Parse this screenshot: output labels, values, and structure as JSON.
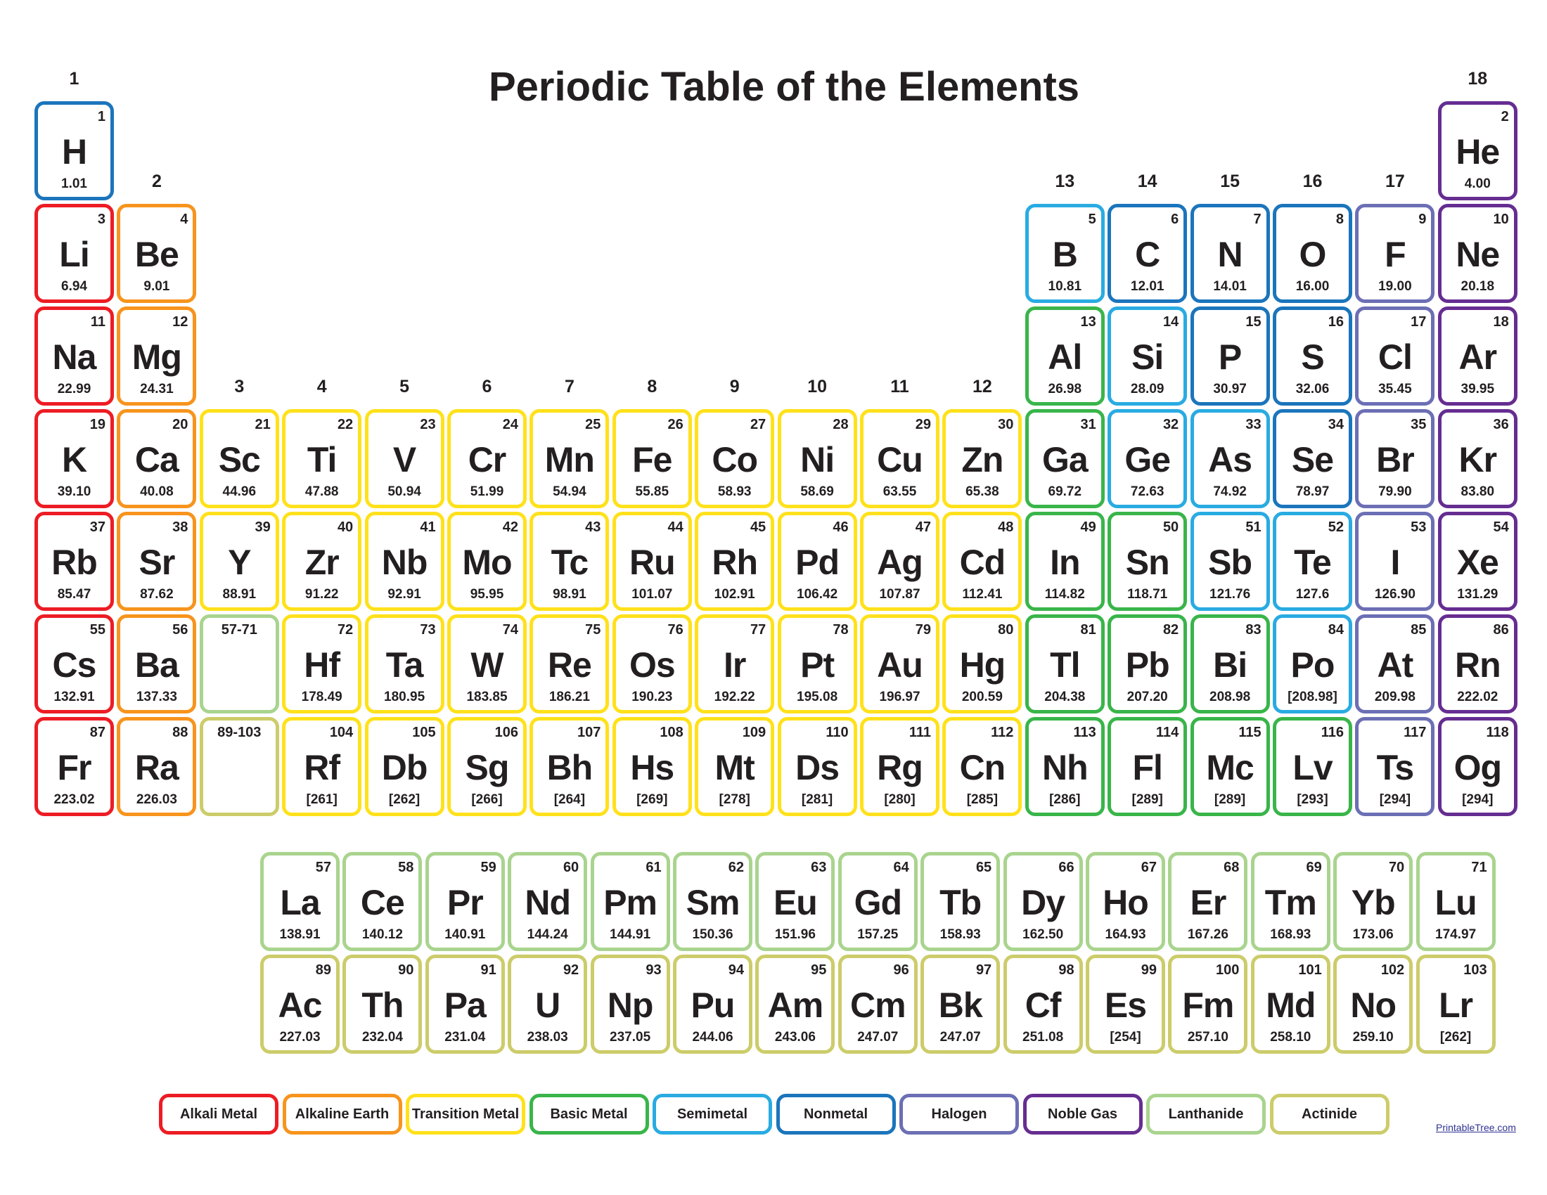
{
  "title": "Periodic Table of the Elements",
  "site": "PrintableTree.com",
  "colors": {
    "alkali": "#ed1c24",
    "alkaline": "#f7941d",
    "transition": "#ffe11b",
    "basic": "#39b54a",
    "semimetal": "#29abe2",
    "nonmetal": "#1b75bc",
    "halogen": "#6c6fb4",
    "noble": "#662d91",
    "lanthanide": "#a9d48e",
    "actinide": "#cccc6a"
  },
  "legend": [
    {
      "label": "Alkali Metal",
      "cat": "alkali"
    },
    {
      "label": "Alkaline Earth",
      "cat": "alkaline"
    },
    {
      "label": "Transition Metal",
      "cat": "transition"
    },
    {
      "label": "Basic Metal",
      "cat": "basic"
    },
    {
      "label": "Semimetal",
      "cat": "semimetal"
    },
    {
      "label": "Nonmetal",
      "cat": "nonmetal"
    },
    {
      "label": "Halogen",
      "cat": "halogen"
    },
    {
      "label": "Noble Gas",
      "cat": "noble"
    },
    {
      "label": "Lanthanide",
      "cat": "lanthanide"
    },
    {
      "label": "Actinide",
      "cat": "actinide"
    }
  ],
  "groups": [
    "1",
    "2",
    "3",
    "4",
    "5",
    "6",
    "7",
    "8",
    "9",
    "10",
    "11",
    "12",
    "13",
    "14",
    "15",
    "16",
    "17",
    "18"
  ],
  "placeholders": [
    {
      "label": "57-71",
      "cat": "lanthanide",
      "period": 6,
      "group": 3
    },
    {
      "label": "89-103",
      "cat": "actinide",
      "period": 7,
      "group": 3
    }
  ],
  "elements": [
    [
      "1",
      "H",
      "1.01",
      "nonmetal",
      1,
      1
    ],
    [
      "2",
      "He",
      "4.00",
      "noble",
      1,
      18
    ],
    [
      "3",
      "Li",
      "6.94",
      "alkali",
      2,
      1
    ],
    [
      "4",
      "Be",
      "9.01",
      "alkaline",
      2,
      2
    ],
    [
      "5",
      "B",
      "10.81",
      "semimetal",
      2,
      13
    ],
    [
      "6",
      "C",
      "12.01",
      "nonmetal",
      2,
      14
    ],
    [
      "7",
      "N",
      "14.01",
      "nonmetal",
      2,
      15
    ],
    [
      "8",
      "O",
      "16.00",
      "nonmetal",
      2,
      16
    ],
    [
      "9",
      "F",
      "19.00",
      "halogen",
      2,
      17
    ],
    [
      "10",
      "Ne",
      "20.18",
      "noble",
      2,
      18
    ],
    [
      "11",
      "Na",
      "22.99",
      "alkali",
      3,
      1
    ],
    [
      "12",
      "Mg",
      "24.31",
      "alkaline",
      3,
      2
    ],
    [
      "13",
      "Al",
      "26.98",
      "basic",
      3,
      13
    ],
    [
      "14",
      "Si",
      "28.09",
      "semimetal",
      3,
      14
    ],
    [
      "15",
      "P",
      "30.97",
      "nonmetal",
      3,
      15
    ],
    [
      "16",
      "S",
      "32.06",
      "nonmetal",
      3,
      16
    ],
    [
      "17",
      "Cl",
      "35.45",
      "halogen",
      3,
      17
    ],
    [
      "18",
      "Ar",
      "39.95",
      "noble",
      3,
      18
    ],
    [
      "19",
      "K",
      "39.10",
      "alkali",
      4,
      1
    ],
    [
      "20",
      "Ca",
      "40.08",
      "alkaline",
      4,
      2
    ],
    [
      "21",
      "Sc",
      "44.96",
      "transition",
      4,
      3
    ],
    [
      "22",
      "Ti",
      "47.88",
      "transition",
      4,
      4
    ],
    [
      "23",
      "V",
      "50.94",
      "transition",
      4,
      5
    ],
    [
      "24",
      "Cr",
      "51.99",
      "transition",
      4,
      6
    ],
    [
      "25",
      "Mn",
      "54.94",
      "transition",
      4,
      7
    ],
    [
      "26",
      "Fe",
      "55.85",
      "transition",
      4,
      8
    ],
    [
      "27",
      "Co",
      "58.93",
      "transition",
      4,
      9
    ],
    [
      "28",
      "Ni",
      "58.69",
      "transition",
      4,
      10
    ],
    [
      "29",
      "Cu",
      "63.55",
      "transition",
      4,
      11
    ],
    [
      "30",
      "Zn",
      "65.38",
      "transition",
      4,
      12
    ],
    [
      "31",
      "Ga",
      "69.72",
      "basic",
      4,
      13
    ],
    [
      "32",
      "Ge",
      "72.63",
      "semimetal",
      4,
      14
    ],
    [
      "33",
      "As",
      "74.92",
      "semimetal",
      4,
      15
    ],
    [
      "34",
      "Se",
      "78.97",
      "nonmetal",
      4,
      16
    ],
    [
      "35",
      "Br",
      "79.90",
      "halogen",
      4,
      17
    ],
    [
      "36",
      "Kr",
      "83.80",
      "noble",
      4,
      18
    ],
    [
      "37",
      "Rb",
      "85.47",
      "alkali",
      5,
      1
    ],
    [
      "38",
      "Sr",
      "87.62",
      "alkaline",
      5,
      2
    ],
    [
      "39",
      "Y",
      "88.91",
      "transition",
      5,
      3
    ],
    [
      "40",
      "Zr",
      "91.22",
      "transition",
      5,
      4
    ],
    [
      "41",
      "Nb",
      "92.91",
      "transition",
      5,
      5
    ],
    [
      "42",
      "Mo",
      "95.95",
      "transition",
      5,
      6
    ],
    [
      "43",
      "Tc",
      "98.91",
      "transition",
      5,
      7
    ],
    [
      "44",
      "Ru",
      "101.07",
      "transition",
      5,
      8
    ],
    [
      "45",
      "Rh",
      "102.91",
      "transition",
      5,
      9
    ],
    [
      "46",
      "Pd",
      "106.42",
      "transition",
      5,
      10
    ],
    [
      "47",
      "Ag",
      "107.87",
      "transition",
      5,
      11
    ],
    [
      "48",
      "Cd",
      "112.41",
      "transition",
      5,
      12
    ],
    [
      "49",
      "In",
      "114.82",
      "basic",
      5,
      13
    ],
    [
      "50",
      "Sn",
      "118.71",
      "basic",
      5,
      14
    ],
    [
      "51",
      "Sb",
      "121.76",
      "semimetal",
      5,
      15
    ],
    [
      "52",
      "Te",
      "127.6",
      "semimetal",
      5,
      16
    ],
    [
      "53",
      "I",
      "126.90",
      "halogen",
      5,
      17
    ],
    [
      "54",
      "Xe",
      "131.29",
      "noble",
      5,
      18
    ],
    [
      "55",
      "Cs",
      "132.91",
      "alkali",
      6,
      1
    ],
    [
      "56",
      "Ba",
      "137.33",
      "alkaline",
      6,
      2
    ],
    [
      "72",
      "Hf",
      "178.49",
      "transition",
      6,
      4
    ],
    [
      "73",
      "Ta",
      "180.95",
      "transition",
      6,
      5
    ],
    [
      "74",
      "W",
      "183.85",
      "transition",
      6,
      6
    ],
    [
      "75",
      "Re",
      "186.21",
      "transition",
      6,
      7
    ],
    [
      "76",
      "Os",
      "190.23",
      "transition",
      6,
      8
    ],
    [
      "77",
      "Ir",
      "192.22",
      "transition",
      6,
      9
    ],
    [
      "78",
      "Pt",
      "195.08",
      "transition",
      6,
      10
    ],
    [
      "79",
      "Au",
      "196.97",
      "transition",
      6,
      11
    ],
    [
      "80",
      "Hg",
      "200.59",
      "transition",
      6,
      12
    ],
    [
      "81",
      "Tl",
      "204.38",
      "basic",
      6,
      13
    ],
    [
      "82",
      "Pb",
      "207.20",
      "basic",
      6,
      14
    ],
    [
      "83",
      "Bi",
      "208.98",
      "basic",
      6,
      15
    ],
    [
      "84",
      "Po",
      "[208.98]",
      "semimetal",
      6,
      16
    ],
    [
      "85",
      "At",
      "209.98",
      "halogen",
      6,
      17
    ],
    [
      "86",
      "Rn",
      "222.02",
      "noble",
      6,
      18
    ],
    [
      "87",
      "Fr",
      "223.02",
      "alkali",
      7,
      1
    ],
    [
      "88",
      "Ra",
      "226.03",
      "alkaline",
      7,
      2
    ],
    [
      "104",
      "Rf",
      "[261]",
      "transition",
      7,
      4
    ],
    [
      "105",
      "Db",
      "[262]",
      "transition",
      7,
      5
    ],
    [
      "106",
      "Sg",
      "[266]",
      "transition",
      7,
      6
    ],
    [
      "107",
      "Bh",
      "[264]",
      "transition",
      7,
      7
    ],
    [
      "108",
      "Hs",
      "[269]",
      "transition",
      7,
      8
    ],
    [
      "109",
      "Mt",
      "[278]",
      "transition",
      7,
      9
    ],
    [
      "110",
      "Ds",
      "[281]",
      "transition",
      7,
      10
    ],
    [
      "111",
      "Rg",
      "[280]",
      "transition",
      7,
      11
    ],
    [
      "112",
      "Cn",
      "[285]",
      "transition",
      7,
      12
    ],
    [
      "113",
      "Nh",
      "[286]",
      "basic",
      7,
      13
    ],
    [
      "114",
      "Fl",
      "[289]",
      "basic",
      7,
      14
    ],
    [
      "115",
      "Mc",
      "[289]",
      "basic",
      7,
      15
    ],
    [
      "116",
      "Lv",
      "[293]",
      "basic",
      7,
      16
    ],
    [
      "117",
      "Ts",
      "[294]",
      "halogen",
      7,
      17
    ],
    [
      "118",
      "Og",
      "[294]",
      "noble",
      7,
      18
    ]
  ],
  "lanthanides": [
    [
      "57",
      "La",
      "138.91"
    ],
    [
      "58",
      "Ce",
      "140.12"
    ],
    [
      "59",
      "Pr",
      "140.91"
    ],
    [
      "60",
      "Nd",
      "144.24"
    ],
    [
      "61",
      "Pm",
      "144.91"
    ],
    [
      "62",
      "Sm",
      "150.36"
    ],
    [
      "63",
      "Eu",
      "151.96"
    ],
    [
      "64",
      "Gd",
      "157.25"
    ],
    [
      "65",
      "Tb",
      "158.93"
    ],
    [
      "66",
      "Dy",
      "162.50"
    ],
    [
      "67",
      "Ho",
      "164.93"
    ],
    [
      "68",
      "Er",
      "167.26"
    ],
    [
      "69",
      "Tm",
      "168.93"
    ],
    [
      "70",
      "Yb",
      "173.06"
    ],
    [
      "71",
      "Lu",
      "174.97"
    ]
  ],
  "actinides": [
    [
      "89",
      "Ac",
      "227.03"
    ],
    [
      "90",
      "Th",
      "232.04"
    ],
    [
      "91",
      "Pa",
      "231.04"
    ],
    [
      "92",
      "U",
      "238.03"
    ],
    [
      "93",
      "Np",
      "237.05"
    ],
    [
      "94",
      "Pu",
      "244.06"
    ],
    [
      "95",
      "Am",
      "243.06"
    ],
    [
      "96",
      "Cm",
      "247.07"
    ],
    [
      "97",
      "Bk",
      "247.07"
    ],
    [
      "98",
      "Cf",
      "251.08"
    ],
    [
      "99",
      "Es",
      "[254]"
    ],
    [
      "100",
      "Fm",
      "257.10"
    ],
    [
      "101",
      "Md",
      "258.10"
    ],
    [
      "102",
      "No",
      "259.10"
    ],
    [
      "103",
      "Lr",
      "[262]"
    ]
  ]
}
